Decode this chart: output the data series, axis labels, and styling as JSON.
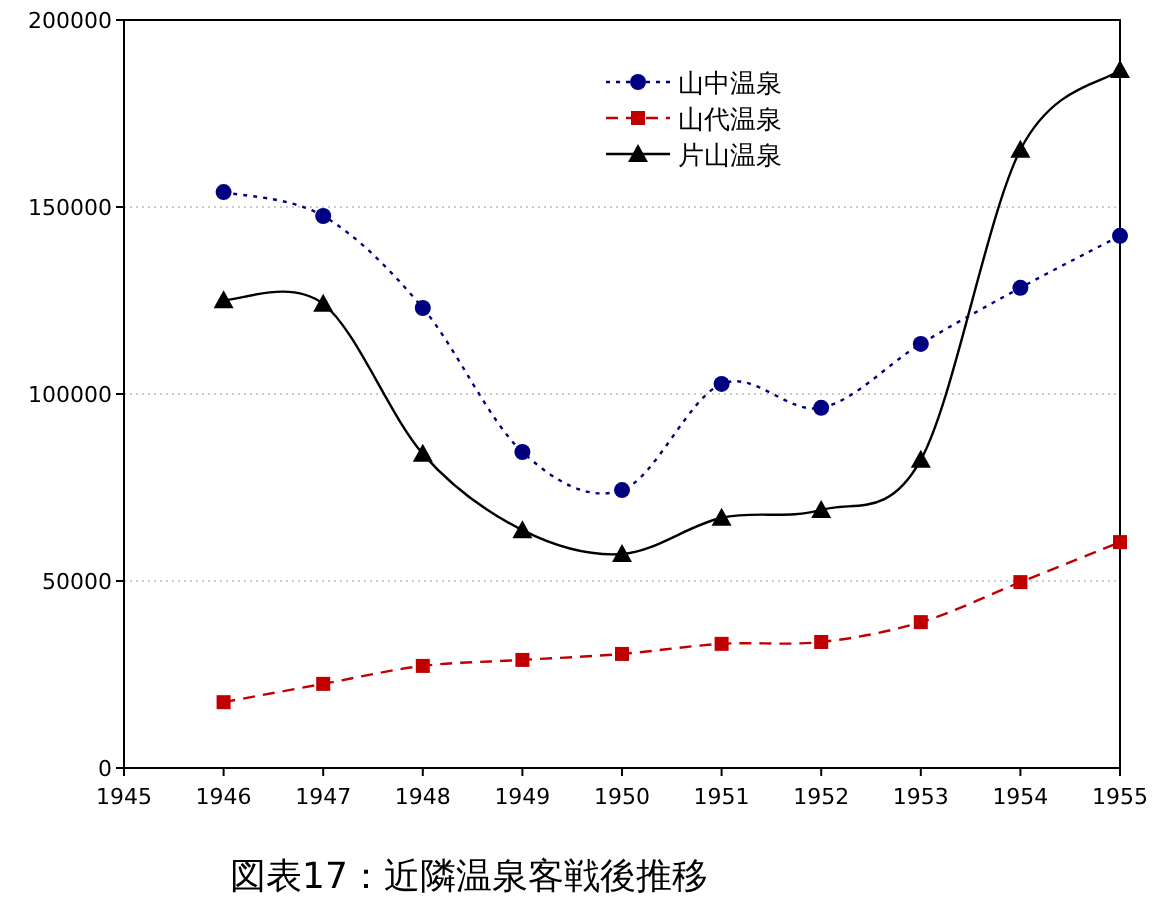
{
  "chart_data": {
    "type": "line",
    "title": "図表17：近隣温泉客戦後推移",
    "x": [
      1946,
      1947,
      1948,
      1949,
      1950,
      1951,
      1952,
      1953,
      1954,
      1955
    ],
    "xlim": [
      1945,
      1955
    ],
    "xticks": [
      1945,
      1946,
      1947,
      1948,
      1949,
      1950,
      1951,
      1952,
      1953,
      1954,
      1955
    ],
    "ylim": [
      0,
      200000
    ],
    "yticks": [
      0,
      50000,
      100000,
      150000,
      200000
    ],
    "grid": "y",
    "legend": "top",
    "series": [
      {
        "name": "山中温泉",
        "color": "#000080",
        "marker": "circle",
        "line_style": "dotted",
        "values": [
          154000,
          147600,
          123000,
          84500,
          74300,
          102700,
          96300,
          113400,
          128400,
          142300
        ]
      },
      {
        "name": "山代温泉",
        "color": "#c00000",
        "marker": "square",
        "line_style": "dashed",
        "values": [
          17600,
          22500,
          27300,
          28900,
          30500,
          33200,
          33700,
          39000,
          49700,
          60400
        ]
      },
      {
        "name": "片山温泉",
        "color": "#000000",
        "marker": "triangle",
        "line_style": "solid",
        "values": [
          125100,
          124100,
          84000,
          63600,
          57200,
          66900,
          69000,
          82400,
          165300,
          186600
        ]
      }
    ]
  }
}
